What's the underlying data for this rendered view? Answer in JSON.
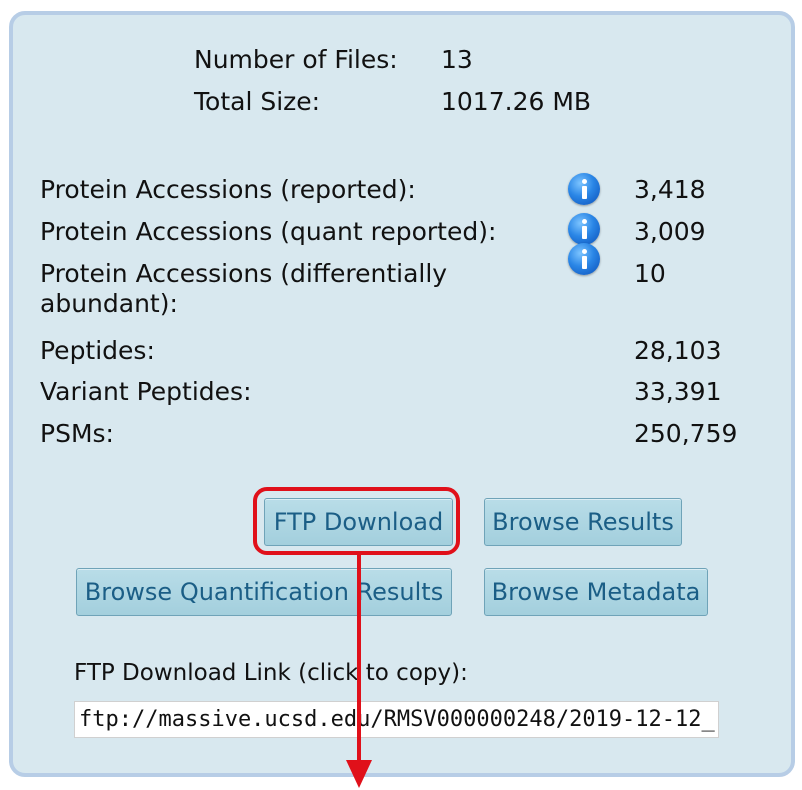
{
  "summary": {
    "files_label": "Number of Files:",
    "files_value": "13",
    "size_label": "Total Size:",
    "size_value": "1017.26 MB"
  },
  "stats": [
    {
      "label": "Protein Accessions (reported):",
      "value": "3,418",
      "info_icon": "info-icon"
    },
    {
      "label": "Protein Accessions (quant reported):",
      "value": "3,009",
      "info_icon": "info-icon"
    },
    {
      "label": "Protein Accessions (differentially abundant):",
      "value": "10",
      "info_icon": "info-icon"
    },
    {
      "label": "Peptides:",
      "value": "28,103"
    },
    {
      "label": "Variant Peptides:",
      "value": "33,391"
    },
    {
      "label": "PSMs:",
      "value": "250,759"
    }
  ],
  "buttons": {
    "ftp_download": "FTP Download",
    "browse_results": "Browse Results",
    "browse_quant": "Browse Quantification Results",
    "browse_metadata": "Browse Metadata"
  },
  "ftp": {
    "label": "FTP Download Link (click to copy):",
    "link": "ftp://massive.ucsd.edu/RMSV000000248/2019-12-12_"
  },
  "colors": {
    "panel_bg": "#d8e8ef",
    "panel_border": "#b7cde6",
    "button_text": "#1b5e86",
    "annotation_red": "#e0101a"
  }
}
